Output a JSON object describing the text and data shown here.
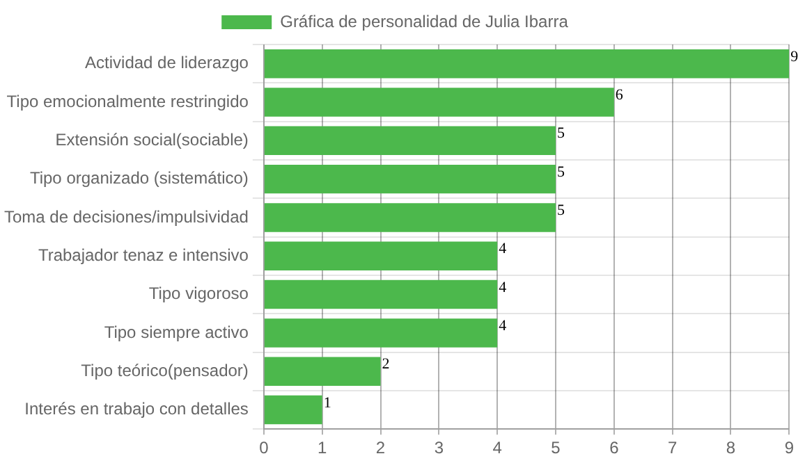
{
  "chart_data": {
    "type": "bar",
    "orientation": "horizontal",
    "categories": [
      "Actividad de liderazgo",
      "Tipo emocionalmente restringido",
      "Extensión social(sociable)",
      "Tipo organizado (sistemático)",
      "Toma de decisiones/impulsividad",
      "Trabajador tenaz e intensivo",
      "Tipo vigoroso",
      "Tipo siempre activo",
      "Tipo teórico(pensador)",
      "Interés en trabajo con detalles"
    ],
    "series": [
      {
        "name": "Gráfica de personalidad de Julia Ibarra",
        "color": "#4cb84c",
        "values": [
          9,
          6,
          5,
          5,
          5,
          4,
          4,
          4,
          2,
          1
        ]
      }
    ],
    "xlim": [
      0,
      9
    ],
    "xticks": [
      0,
      1,
      2,
      3,
      4,
      5,
      6,
      7,
      8,
      9
    ],
    "grid": true,
    "legend": "top",
    "data_labels": true
  }
}
